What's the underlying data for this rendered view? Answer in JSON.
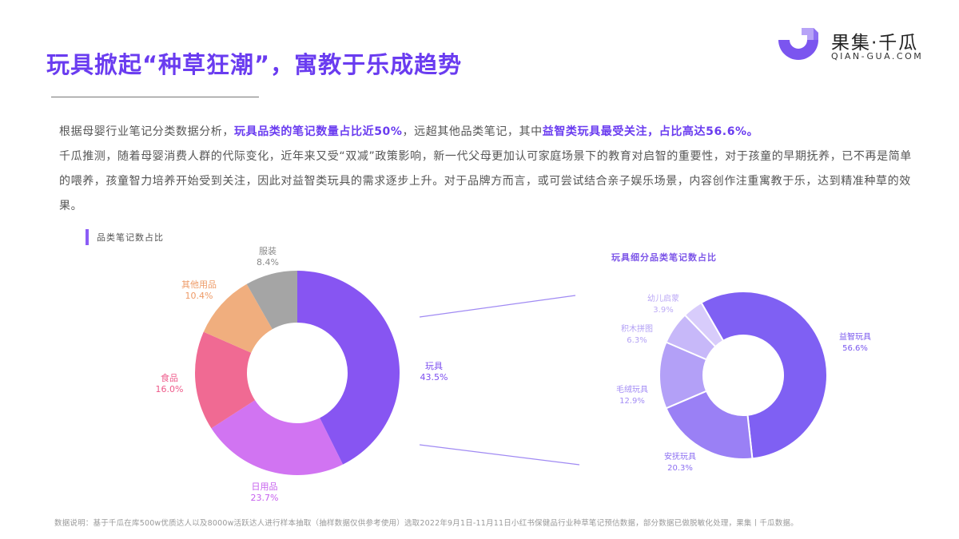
{
  "header": {
    "title": "玩具掀起“种草狂潮”，寓教于乐成趋势",
    "logo_cn": "果集·千瓜",
    "logo_en": "QIAN-GUA.COM"
  },
  "paragraph": {
    "line1_a": "根据母婴行业笔记分类数据分析，",
    "line1_hl1": "玩具品类的笔记数量占比近50%",
    "line1_b": "，远超其他品类笔记，其中",
    "line1_hl2": "益智类玩具最受关注，占比高达56.6%。",
    "rest": "千瓜推测，随着母婴消费人群的代际变化，近年来又受“双减”政策影响，新一代父母更加认可家庭场景下的教育对启智的重要性，对于孩童的早期抚养，已不再是简单的喂养，孩童智力培养开始受到关注，因此对益智类玩具的需求逐步上升。对于品牌方而言，或可尝试结合亲子娱乐场景，内容创作注重寓教于乐，达到精准种草的效果。"
  },
  "charts": {
    "left_title": "品类笔记数占比",
    "right_title": "玩具细分品类笔记数占比"
  },
  "chart_data": [
    {
      "type": "pie",
      "title": "品类笔记数占比",
      "donut": true,
      "categories": [
        "玩具",
        "日用品",
        "食品",
        "其他用品",
        "服装"
      ],
      "values": [
        43.5,
        23.7,
        16.0,
        10.4,
        8.4
      ],
      "labels": [
        "43.5%",
        "23.7%",
        "16.0%",
        "10.4%",
        "8.4%"
      ],
      "colors": [
        "#8755f2",
        "#d174f2",
        "#f06a93",
        "#f0ae7e",
        "#a5a5a5"
      ],
      "start_angle": "12 o'clock, clockwise"
    },
    {
      "type": "pie",
      "title": "玩具细分品类笔记数占比",
      "donut": true,
      "categories": [
        "益智玩具",
        "安抚玩具",
        "毛绒玩具",
        "积木拼图",
        "幼儿启蒙"
      ],
      "values": [
        56.6,
        20.3,
        12.9,
        6.3,
        3.9
      ],
      "labels": [
        "56.6%",
        "20.3%",
        "12.9%",
        "6.3%",
        "3.9%"
      ],
      "colors": [
        "#7f60f3",
        "#9a80f5",
        "#b3a0f7",
        "#c7b8f9",
        "#d8ccfb"
      ],
      "start_angle": "~5 o'clock boundary, see figure",
      "note": "breakdown of 玩具 43.5% slice"
    }
  ],
  "footnote": "数据说明：基于千瓜在库500w优质达人以及8000w活跃达人进行样本抽取（抽样数据仅供参考使用）选取2022年9月1日-11月11日小红书保健品行业种草笔记预估数据，部分数据已做脱敏化处理，果集丨千瓜数据。"
}
